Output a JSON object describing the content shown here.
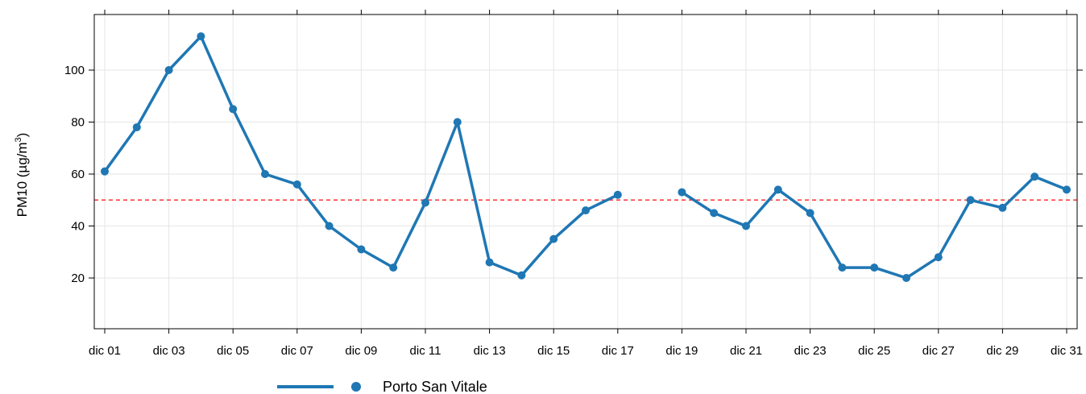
{
  "chart_data": {
    "type": "line",
    "ylabel": "PM10 (µg/m³)",
    "ylabel_parts": {
      "main": "PM10 (µg/m",
      "sup": "3",
      "tail": ")"
    },
    "x": [
      "dic 01",
      "dic 02",
      "dic 03",
      "dic 04",
      "dic 05",
      "dic 06",
      "dic 07",
      "dic 08",
      "dic 09",
      "dic 10",
      "dic 11",
      "dic 12",
      "dic 13",
      "dic 14",
      "dic 15",
      "dic 16",
      "dic 17",
      "dic 18",
      "dic 19",
      "dic 20",
      "dic 21",
      "dic 22",
      "dic 23",
      "dic 24",
      "dic 25",
      "dic 26",
      "dic 27",
      "dic 28",
      "dic 29",
      "dic 30",
      "dic 31"
    ],
    "x_tick_labels": [
      "dic 01",
      "dic 03",
      "dic 05",
      "dic 07",
      "dic 09",
      "dic 11",
      "dic 13",
      "dic 15",
      "dic 17",
      "dic 19",
      "dic 21",
      "dic 23",
      "dic 25",
      "dic 27",
      "dic 29",
      "dic 31"
    ],
    "y_ticks": [
      20,
      40,
      60,
      80,
      100
    ],
    "ylim": [
      0,
      119
    ],
    "grid": true,
    "threshold": {
      "value": 50,
      "color": "#ff3333",
      "style": "dashed"
    },
    "legend_position": "bottom",
    "series": [
      {
        "name": "Porto San Vitale",
        "color": "#1f77b4",
        "values": [
          61,
          78,
          100,
          113,
          85,
          60,
          56,
          40,
          31,
          24,
          49,
          80,
          26,
          21,
          35,
          46,
          52,
          null,
          53,
          45,
          40,
          54,
          45,
          24,
          24,
          20,
          28,
          50,
          47,
          59,
          54
        ]
      }
    ]
  }
}
